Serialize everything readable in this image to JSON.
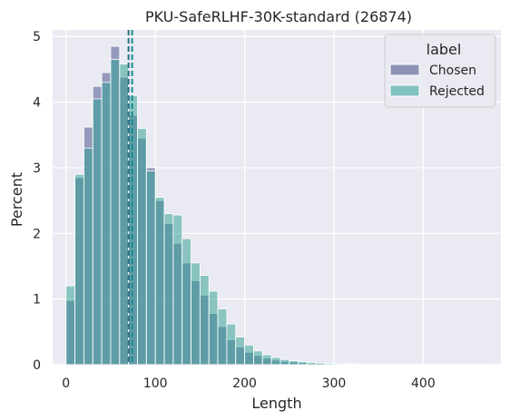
{
  "chart_data": {
    "type": "bar",
    "title": "PKU-SafeRLHF-30K-standard (26874)",
    "xlabel": "Length",
    "ylabel": "Percent",
    "xlim": [
      -15,
      487
    ],
    "ylim": [
      0,
      5.1
    ],
    "xticks": [
      "0",
      "100",
      "200",
      "300",
      "400"
    ],
    "xtick_values": [
      0,
      100,
      200,
      300,
      400
    ],
    "yticks": [
      "0",
      "1",
      "2",
      "3",
      "4",
      "5"
    ],
    "ytick_values": [
      0,
      1,
      2,
      3,
      4,
      5
    ],
    "grid": true,
    "background": "#eaeaf2",
    "bin_edges": [
      0,
      10,
      20,
      30,
      40,
      50,
      60,
      70,
      80,
      90,
      100,
      110,
      120,
      130,
      140,
      150,
      160,
      170,
      180,
      190,
      200,
      210,
      220,
      230,
      240,
      250,
      260,
      270,
      280,
      290,
      300,
      310,
      320,
      330,
      340,
      350,
      360,
      370,
      380,
      390,
      400,
      410,
      420,
      430,
      440,
      450,
      460,
      470
    ],
    "legend": {
      "title": "label",
      "position": "top-right"
    },
    "series": [
      {
        "name": "Chosen",
        "color": "#3f4a87",
        "values": [
          0.98,
          2.85,
          3.62,
          4.24,
          4.45,
          4.85,
          4.38,
          3.8,
          3.45,
          3.0,
          2.5,
          2.15,
          1.85,
          1.55,
          1.28,
          1.06,
          0.78,
          0.58,
          0.38,
          0.27,
          0.19,
          0.14,
          0.1,
          0.07,
          0.05,
          0.04,
          0.03,
          0.02,
          0.02,
          0.01,
          0.01,
          0.01,
          0.01,
          0.005,
          0.005,
          0.005,
          0.005,
          0.005,
          0.005,
          0.005,
          0.005,
          0.005,
          0.005,
          0.005,
          0.005,
          0.005,
          0.005
        ],
        "mean": 70
      },
      {
        "name": "Rejected",
        "color": "#2a9d8f",
        "values": [
          1.2,
          2.9,
          3.3,
          4.05,
          4.3,
          4.65,
          4.58,
          4.1,
          3.6,
          2.95,
          2.55,
          2.3,
          2.28,
          1.92,
          1.55,
          1.36,
          1.12,
          0.85,
          0.62,
          0.42,
          0.3,
          0.21,
          0.15,
          0.11,
          0.08,
          0.06,
          0.045,
          0.035,
          0.025,
          0.02,
          0.015,
          0.012,
          0.01,
          0.008,
          0.006,
          0.005,
          0.005,
          0.005,
          0.005,
          0.005,
          0.005,
          0.005,
          0.005,
          0.005,
          0.005,
          0.005,
          0.005
        ],
        "mean": 74
      }
    ],
    "mean_line_colors": [
      "#2e6f86",
      "#1a8a8c"
    ]
  }
}
